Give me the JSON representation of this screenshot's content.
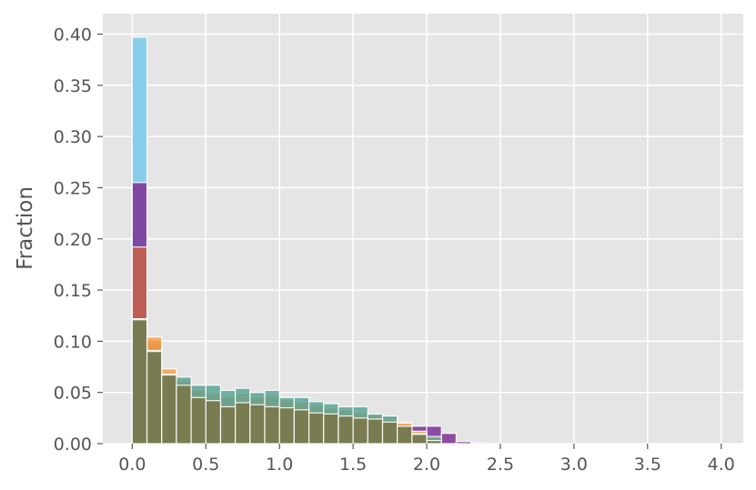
{
  "chart_data": {
    "type": "bar",
    "subtype": "overlaid-histogram",
    "title": "",
    "xlabel": "",
    "ylabel": "Fraction",
    "xlim": [
      -0.2,
      4.15
    ],
    "ylim": [
      0,
      0.42
    ],
    "grid": true,
    "legend": "none",
    "bin_width": 0.1,
    "bin_starts": [
      0.0,
      0.1,
      0.2,
      0.3,
      0.4,
      0.5,
      0.6,
      0.7,
      0.8,
      0.9,
      1.0,
      1.1,
      1.2,
      1.3,
      1.4,
      1.5,
      1.6,
      1.7,
      1.8,
      1.9,
      2.0,
      2.1,
      2.2,
      2.3,
      2.4,
      2.5
    ],
    "x_ticks": [
      0.0,
      0.5,
      1.0,
      1.5,
      2.0,
      2.5,
      3.0,
      3.5,
      4.0
    ],
    "x_tick_labels": [
      "0.0",
      "0.5",
      "1.0",
      "1.5",
      "2.0",
      "2.5",
      "3.0",
      "3.5",
      "4.0"
    ],
    "y_ticks": [
      0.0,
      0.05,
      0.1,
      0.15,
      0.2,
      0.25,
      0.3,
      0.35,
      0.4
    ],
    "y_tick_labels": [
      "0.00",
      "0.05",
      "0.10",
      "0.15",
      "0.20",
      "0.25",
      "0.30",
      "0.35",
      "0.40"
    ],
    "series": [
      {
        "color": "#87ceeb",
        "values": [
          0.397,
          0.09,
          0.068,
          0.06,
          0.05,
          0.045,
          0.042,
          0.045,
          0.042,
          0.043,
          0.041,
          0.038,
          0.035,
          0.033,
          0.03,
          0.028,
          0.026,
          0.022,
          0.018,
          0.01,
          0.004,
          0.0,
          0.0,
          0.0,
          0.0,
          0.0
        ]
      },
      {
        "color": "#7e3096",
        "values": [
          0.255,
          0.098,
          0.07,
          0.06,
          0.052,
          0.048,
          0.044,
          0.046,
          0.043,
          0.044,
          0.04,
          0.038,
          0.036,
          0.034,
          0.031,
          0.03,
          0.028,
          0.026,
          0.021,
          0.017,
          0.017,
          0.01,
          0.002,
          0.001,
          0.0,
          0.0
        ]
      },
      {
        "color": "#c86446",
        "values": [
          0.192,
          0.101,
          0.07,
          0.06,
          0.052,
          0.05,
          0.045,
          0.048,
          0.045,
          0.046,
          0.042,
          0.04,
          0.037,
          0.034,
          0.032,
          0.03,
          0.027,
          0.023,
          0.019,
          0.012,
          0.006,
          0.0,
          0.0,
          0.0,
          0.0,
          0.0
        ]
      },
      {
        "color": "#f5a04a",
        "values": [
          0.122,
          0.104,
          0.073,
          0.062,
          0.053,
          0.05,
          0.046,
          0.049,
          0.046,
          0.047,
          0.043,
          0.041,
          0.038,
          0.035,
          0.033,
          0.031,
          0.028,
          0.024,
          0.02,
          0.012,
          0.006,
          0.0,
          0.0,
          0.0,
          0.0,
          0.0
        ]
      },
      {
        "color": "#5aa596",
        "values": [
          0.121,
          0.091,
          0.068,
          0.065,
          0.057,
          0.057,
          0.052,
          0.054,
          0.05,
          0.052,
          0.045,
          0.045,
          0.041,
          0.039,
          0.036,
          0.036,
          0.029,
          0.027,
          0.017,
          0.01,
          0.007,
          0.0,
          0.0,
          0.0,
          0.0,
          0.0
        ]
      },
      {
        "color": "#7a7446",
        "values": [
          0.121,
          0.09,
          0.067,
          0.057,
          0.045,
          0.042,
          0.036,
          0.04,
          0.038,
          0.036,
          0.035,
          0.033,
          0.03,
          0.029,
          0.027,
          0.025,
          0.024,
          0.021,
          0.017,
          0.009,
          0.003,
          0.0,
          0.0,
          0.0,
          0.0,
          0.0
        ]
      }
    ]
  }
}
